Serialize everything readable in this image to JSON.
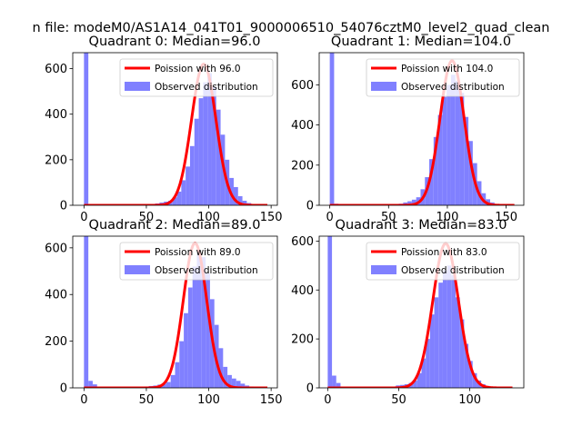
{
  "figure": {
    "suptitle": "n file: modeM0/AS1A14_041T01_9000006510_54076cztM0_level2_quad_clean"
  },
  "colors": {
    "histogram": "#8080ff",
    "poisson_line": "#ff0000",
    "axis": "#000000"
  },
  "chart_data": [
    {
      "type": "bar",
      "title": "Quadrant 0: Median=96.0",
      "median": 96.0,
      "legend": {
        "line_label": "Poission with 96.0",
        "hist_label": "Observed distribution",
        "placement": "top-right"
      },
      "xlim": [
        -9,
        155
      ],
      "ylim": [
        0,
        670
      ],
      "xticks": [
        0,
        50,
        100,
        150
      ],
      "yticks": [
        0,
        200,
        400,
        600
      ],
      "bin_width": 3.5,
      "bins": [
        [
          0,
          670
        ],
        [
          3.5,
          6
        ],
        [
          7,
          4
        ],
        [
          50,
          2
        ],
        [
          53.5,
          5
        ],
        [
          57,
          8
        ],
        [
          60.5,
          12
        ],
        [
          64,
          16
        ],
        [
          67.5,
          20
        ],
        [
          71,
          35
        ],
        [
          74.5,
          60
        ],
        [
          78,
          110
        ],
        [
          81.5,
          170
        ],
        [
          85,
          260
        ],
        [
          88.5,
          380
        ],
        [
          92,
          470
        ],
        [
          95.5,
          540
        ],
        [
          99,
          580
        ],
        [
          102.5,
          520
        ],
        [
          106,
          420
        ],
        [
          109.5,
          310
        ],
        [
          113,
          200
        ],
        [
          116.5,
          120
        ],
        [
          120,
          80
        ],
        [
          123.5,
          40
        ],
        [
          127,
          20
        ],
        [
          130.5,
          10
        ],
        [
          134,
          6
        ]
      ],
      "poisson": {
        "mean": 96.0,
        "peak": 620,
        "sigma": 9.8
      }
    },
    {
      "type": "bar",
      "title": "Quadrant 1: Median=104.0",
      "median": 104.0,
      "legend": {
        "line_label": "Poission with 104.0",
        "hist_label": "Observed distribution",
        "placement": "top-right"
      },
      "xlim": [
        -9,
        165
      ],
      "ylim": [
        0,
        760
      ],
      "xticks": [
        0,
        50,
        100,
        150
      ],
      "yticks": [
        0,
        200,
        400,
        600
      ],
      "bin_width": 3.7,
      "bins": [
        [
          0,
          760
        ],
        [
          3.7,
          8
        ],
        [
          7.4,
          4
        ],
        [
          55,
          4
        ],
        [
          58.7,
          8
        ],
        [
          62.4,
          14
        ],
        [
          66.1,
          20
        ],
        [
          69.8,
          28
        ],
        [
          73.5,
          40
        ],
        [
          77.2,
          80
        ],
        [
          80.9,
          140
        ],
        [
          84.6,
          230
        ],
        [
          88.3,
          340
        ],
        [
          92,
          450
        ],
        [
          95.7,
          540
        ],
        [
          99.4,
          600
        ],
        [
          103.1,
          650
        ],
        [
          106.8,
          620
        ],
        [
          110.5,
          560
        ],
        [
          114.2,
          440
        ],
        [
          117.9,
          320
        ],
        [
          121.6,
          210
        ],
        [
          125.3,
          120
        ],
        [
          129,
          60
        ],
        [
          132.7,
          30
        ],
        [
          136.4,
          14
        ],
        [
          140.1,
          6
        ]
      ],
      "poisson": {
        "mean": 104.0,
        "peak": 720,
        "sigma": 10.2
      }
    },
    {
      "type": "bar",
      "title": "Quadrant 2: Median=89.0",
      "median": 89.0,
      "legend": {
        "line_label": "Poission with 89.0",
        "hist_label": "Observed distribution",
        "placement": "top-right"
      },
      "xlim": [
        -9,
        155
      ],
      "ylim": [
        0,
        650
      ],
      "xticks": [
        0,
        50,
        100,
        150
      ],
      "yticks": [
        0,
        200,
        400,
        600
      ],
      "bin_width": 3.5,
      "bins": [
        [
          0,
          650
        ],
        [
          3.5,
          30
        ],
        [
          7,
          15
        ],
        [
          45,
          4
        ],
        [
          48.5,
          6
        ],
        [
          52,
          8
        ],
        [
          55.5,
          10
        ],
        [
          59,
          14
        ],
        [
          62.5,
          18
        ],
        [
          66,
          25
        ],
        [
          69.5,
          55
        ],
        [
          73,
          110
        ],
        [
          76.5,
          200
        ],
        [
          80,
          320
        ],
        [
          83.5,
          430
        ],
        [
          87,
          520
        ],
        [
          90.5,
          580
        ],
        [
          94,
          560
        ],
        [
          97.5,
          490
        ],
        [
          101,
          380
        ],
        [
          104.5,
          270
        ],
        [
          108,
          170
        ],
        [
          111.5,
          90
        ],
        [
          115,
          55
        ],
        [
          118.5,
          40
        ],
        [
          122,
          30
        ],
        [
          125.5,
          18
        ],
        [
          129,
          10
        ],
        [
          132.5,
          6
        ]
      ],
      "poisson": {
        "mean": 89.0,
        "peak": 620,
        "sigma": 9.4
      }
    },
    {
      "type": "bar",
      "title": "Quadrant 3: Median=83.0",
      "median": 83.0,
      "legend": {
        "line_label": "Poission with 83.0",
        "hist_label": "Observed distribution",
        "placement": "top-right"
      },
      "xlim": [
        -6,
        138
      ],
      "ylim": [
        0,
        620
      ],
      "xticks": [
        0,
        50,
        100
      ],
      "yticks": [
        0,
        200,
        400,
        600
      ],
      "bin_width": 3.0,
      "bins": [
        [
          0,
          620
        ],
        [
          3,
          50
        ],
        [
          6,
          20
        ],
        [
          48,
          10
        ],
        [
          51,
          12
        ],
        [
          54,
          15
        ],
        [
          57,
          20
        ],
        [
          60,
          30
        ],
        [
          63,
          60
        ],
        [
          66,
          120
        ],
        [
          69,
          200
        ],
        [
          72,
          300
        ],
        [
          75,
          370
        ],
        [
          78,
          430
        ],
        [
          81,
          480
        ],
        [
          84,
          500
        ],
        [
          87,
          460
        ],
        [
          90,
          370
        ],
        [
          93,
          280
        ],
        [
          96,
          180
        ],
        [
          99,
          110
        ],
        [
          102,
          60
        ],
        [
          105,
          30
        ],
        [
          108,
          15
        ],
        [
          111,
          8
        ],
        [
          114,
          5
        ]
      ],
      "poisson": {
        "mean": 83.0,
        "peak": 590,
        "sigma": 9.0
      }
    }
  ]
}
